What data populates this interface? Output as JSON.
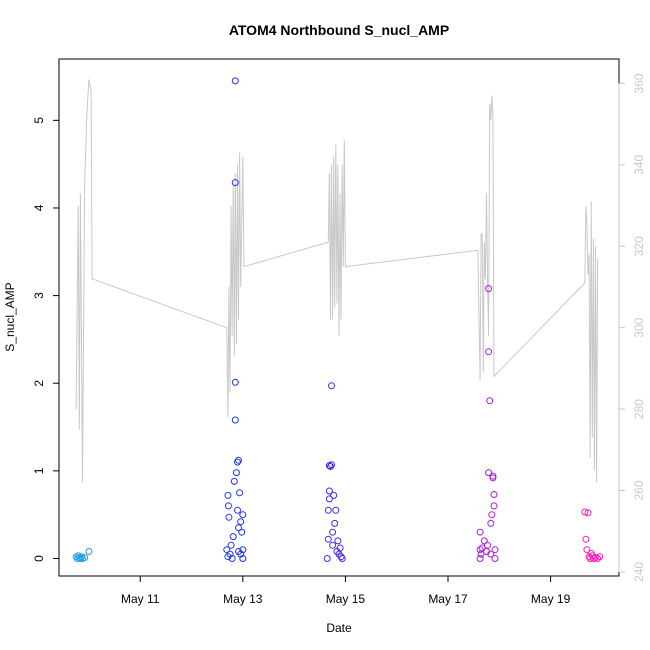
{
  "chart_data": {
    "type": "scatter",
    "title": "ATOM4 Northbound S_nucl_AMP",
    "xlabel": "Date",
    "ylabel": "S_nucl_AMP",
    "xlim": [
      "2023-05-09 10:00",
      "2023-05-20 08:00"
    ],
    "ylim": [
      -0.2,
      5.7
    ],
    "y2lim": [
      239,
      366
    ],
    "x_ticks": [
      "May 11",
      "May 13",
      "May 15",
      "May 17",
      "May 19"
    ],
    "x_tick_dates": [
      "2023-05-11",
      "2023-05-13",
      "2023-05-15",
      "2023-05-17",
      "2023-05-19"
    ],
    "y_ticks": [
      0,
      1,
      2,
      3,
      4,
      5
    ],
    "y2_ticks": [
      240,
      260,
      280,
      300,
      320,
      340,
      360
    ],
    "grid": false,
    "colors": {
      "scatter_gradient": [
        "#1fa3ee",
        "#1f2cf0",
        "#7a1ff0",
        "#ff1fb4"
      ],
      "line": "#c8c8c8",
      "axis": "#000000",
      "right_axis": "#c8c8c8"
    },
    "series": [
      {
        "type": "scatter",
        "axis": "left",
        "points": [
          [
            "2023-05-09 18:00",
            0.02
          ],
          [
            "2023-05-09 18:30",
            0.0
          ],
          [
            "2023-05-09 19:00",
            0.03
          ],
          [
            "2023-05-09 19:30",
            0.01
          ],
          [
            "2023-05-09 20:00",
            0.0
          ],
          [
            "2023-05-09 20:30",
            0.02
          ],
          [
            "2023-05-09 21:00",
            0.0
          ],
          [
            "2023-05-09 22:00",
            0.01
          ],
          [
            "2023-05-10 00:00",
            0.08
          ],
          [
            "2023-05-12 16:30",
            0.1
          ],
          [
            "2023-05-12 17:00",
            0.02
          ],
          [
            "2023-05-12 17:00",
            0.72
          ],
          [
            "2023-05-12 17:15",
            0.6
          ],
          [
            "2023-05-12 17:30",
            0.47
          ],
          [
            "2023-05-12 18:00",
            0.05
          ],
          [
            "2023-05-12 18:30",
            0.15
          ],
          [
            "2023-05-12 19:00",
            0.0
          ],
          [
            "2023-05-12 19:30",
            0.25
          ],
          [
            "2023-05-12 20:00",
            0.88
          ],
          [
            "2023-05-12 20:30",
            5.45
          ],
          [
            "2023-05-12 20:30",
            4.29
          ],
          [
            "2023-05-12 20:30",
            2.01
          ],
          [
            "2023-05-12 20:30",
            1.58
          ],
          [
            "2023-05-12 21:00",
            0.98
          ],
          [
            "2023-05-12 21:30",
            1.1
          ],
          [
            "2023-05-12 21:30",
            0.55
          ],
          [
            "2023-05-12 22:00",
            1.12
          ],
          [
            "2023-05-12 22:00",
            0.35
          ],
          [
            "2023-05-12 22:30",
            0.75
          ],
          [
            "2023-05-12 23:00",
            0.42
          ],
          [
            "2023-05-12 23:30",
            0.3
          ],
          [
            "2023-05-13 00:00",
            0.5
          ],
          [
            "2023-05-13 00:00",
            0.1
          ],
          [
            "2023-05-13 00:00",
            0.0
          ],
          [
            "2023-05-12 23:00",
            0.05
          ],
          [
            "2023-05-12 22:00",
            0.08
          ],
          [
            "2023-05-14 15:30",
            0.0
          ],
          [
            "2023-05-14 16:00",
            0.22
          ],
          [
            "2023-05-14 16:00",
            0.55
          ],
          [
            "2023-05-14 16:30",
            1.06
          ],
          [
            "2023-05-14 16:30",
            0.77
          ],
          [
            "2023-05-14 16:30",
            0.68
          ],
          [
            "2023-05-14 17:00",
            1.05
          ],
          [
            "2023-05-14 17:30",
            1.07
          ],
          [
            "2023-05-14 17:30",
            1.97
          ],
          [
            "2023-05-14 18:00",
            0.3
          ],
          [
            "2023-05-14 18:00",
            0.15
          ],
          [
            "2023-05-14 18:30",
            0.72
          ],
          [
            "2023-05-14 19:00",
            0.4
          ],
          [
            "2023-05-14 19:30",
            0.55
          ],
          [
            "2023-05-14 20:00",
            0.08
          ],
          [
            "2023-05-14 20:30",
            0.2
          ],
          [
            "2023-05-14 21:00",
            0.05
          ],
          [
            "2023-05-14 21:30",
            0.12
          ],
          [
            "2023-05-14 22:00",
            0.02
          ],
          [
            "2023-05-14 22:30",
            0.0
          ],
          [
            "2023-05-17 15:00",
            0.3
          ],
          [
            "2023-05-17 15:00",
            0.1
          ],
          [
            "2023-05-17 15:00",
            0.0
          ],
          [
            "2023-05-17 15:30",
            0.05
          ],
          [
            "2023-05-17 16:00",
            0.12
          ],
          [
            "2023-05-17 17:00",
            0.2
          ],
          [
            "2023-05-17 18:00",
            0.08
          ],
          [
            "2023-05-17 18:30",
            0.15
          ],
          [
            "2023-05-17 19:00",
            3.08
          ],
          [
            "2023-05-17 19:00",
            2.36
          ],
          [
            "2023-05-17 19:00",
            0.98
          ],
          [
            "2023-05-17 19:30",
            1.8
          ],
          [
            "2023-05-17 20:00",
            0.4
          ],
          [
            "2023-05-17 20:00",
            0.05
          ],
          [
            "2023-05-17 20:30",
            0.5
          ],
          [
            "2023-05-17 21:00",
            0.94
          ],
          [
            "2023-05-17 21:00",
            0.92
          ],
          [
            "2023-05-17 21:30",
            0.73
          ],
          [
            "2023-05-17 21:30",
            0.6
          ],
          [
            "2023-05-17 22:00",
            0.1
          ],
          [
            "2023-05-17 22:00",
            0.0
          ],
          [
            "2023-05-19 16:00",
            0.53
          ],
          [
            "2023-05-19 16:30",
            0.22
          ],
          [
            "2023-05-19 17:00",
            0.1
          ],
          [
            "2023-05-19 17:30",
            0.52
          ],
          [
            "2023-05-19 18:00",
            0.02
          ],
          [
            "2023-05-19 18:30",
            0.0
          ],
          [
            "2023-05-19 19:00",
            0.06
          ],
          [
            "2023-05-19 19:30",
            0.03
          ],
          [
            "2023-05-19 20:00",
            0.0
          ],
          [
            "2023-05-19 21:00",
            0.01
          ],
          [
            "2023-05-19 22:00",
            0.0
          ],
          [
            "2023-05-19 23:00",
            0.02
          ]
        ]
      },
      {
        "type": "line",
        "axis": "right",
        "points": [
          [
            "2023-05-09 18:00",
            280
          ],
          [
            "2023-05-09 19:00",
            330
          ],
          [
            "2023-05-09 19:30",
            275
          ],
          [
            "2023-05-09 20:00",
            333
          ],
          [
            "2023-05-09 21:00",
            262
          ],
          [
            "2023-05-09 22:00",
            335
          ],
          [
            "2023-05-09 23:00",
            352
          ],
          [
            "2023-05-10 00:00",
            361
          ],
          [
            "2023-05-10 01:00",
            358
          ],
          [
            "2023-05-10 01:30",
            312
          ],
          [
            "2023-05-12 16:30",
            300
          ],
          [
            "2023-05-12 17:00",
            278
          ],
          [
            "2023-05-12 17:30",
            310
          ],
          [
            "2023-05-12 18:00",
            284
          ],
          [
            "2023-05-12 18:30",
            330
          ],
          [
            "2023-05-12 19:00",
            298
          ],
          [
            "2023-05-12 19:30",
            335
          ],
          [
            "2023-05-12 20:00",
            293
          ],
          [
            "2023-05-12 20:30",
            338
          ],
          [
            "2023-05-12 21:00",
            296
          ],
          [
            "2023-05-12 21:30",
            340
          ],
          [
            "2023-05-12 22:00",
            302
          ],
          [
            "2023-05-12 22:30",
            343
          ],
          [
            "2023-05-12 23:00",
            310
          ],
          [
            "2023-05-13 00:00",
            342
          ],
          [
            "2023-05-13 00:30",
            315
          ],
          [
            "2023-05-14 16:00",
            321
          ],
          [
            "2023-05-14 16:30",
            338
          ],
          [
            "2023-05-14 17:00",
            302
          ],
          [
            "2023-05-14 17:30",
            340
          ],
          [
            "2023-05-14 18:00",
            302
          ],
          [
            "2023-05-14 18:30",
            342
          ],
          [
            "2023-05-14 19:00",
            305
          ],
          [
            "2023-05-14 19:30",
            345
          ],
          [
            "2023-05-14 20:00",
            306
          ],
          [
            "2023-05-14 20:30",
            340
          ],
          [
            "2023-05-14 21:00",
            298
          ],
          [
            "2023-05-14 21:30",
            333
          ],
          [
            "2023-05-14 22:00",
            302
          ],
          [
            "2023-05-14 22:30",
            340
          ],
          [
            "2023-05-14 23:00",
            315
          ],
          [
            "2023-05-14 23:30",
            346
          ],
          [
            "2023-05-15 00:00",
            315
          ],
          [
            "2023-05-17 14:00",
            319
          ],
          [
            "2023-05-17 15:00",
            287
          ],
          [
            "2023-05-17 15:30",
            323
          ],
          [
            "2023-05-17 16:00",
            323
          ],
          [
            "2023-05-17 16:30",
            289
          ],
          [
            "2023-05-17 17:00",
            321
          ],
          [
            "2023-05-17 17:30",
            312
          ],
          [
            "2023-05-17 18:00",
            333
          ],
          [
            "2023-05-17 18:30",
            312
          ],
          [
            "2023-05-17 19:00",
            298
          ],
          [
            "2023-05-17 19:30",
            355
          ],
          [
            "2023-05-17 20:00",
            351
          ],
          [
            "2023-05-17 20:30",
            357
          ],
          [
            "2023-05-17 21:00",
            352
          ],
          [
            "2023-05-17 21:30",
            288
          ],
          [
            "2023-05-19 16:00",
            311
          ],
          [
            "2023-05-19 16:30",
            330
          ],
          [
            "2023-05-19 17:00",
            326
          ],
          [
            "2023-05-19 17:30",
            313
          ],
          [
            "2023-05-19 18:00",
            318
          ],
          [
            "2023-05-19 18:30",
            268
          ],
          [
            "2023-05-19 19:00",
            331
          ],
          [
            "2023-05-19 19:30",
            273
          ],
          [
            "2023-05-19 20:00",
            322
          ],
          [
            "2023-05-19 20:30",
            265
          ],
          [
            "2023-05-19 21:00",
            320
          ],
          [
            "2023-05-19 21:30",
            262
          ],
          [
            "2023-05-19 22:00",
            317
          ]
        ]
      }
    ]
  }
}
